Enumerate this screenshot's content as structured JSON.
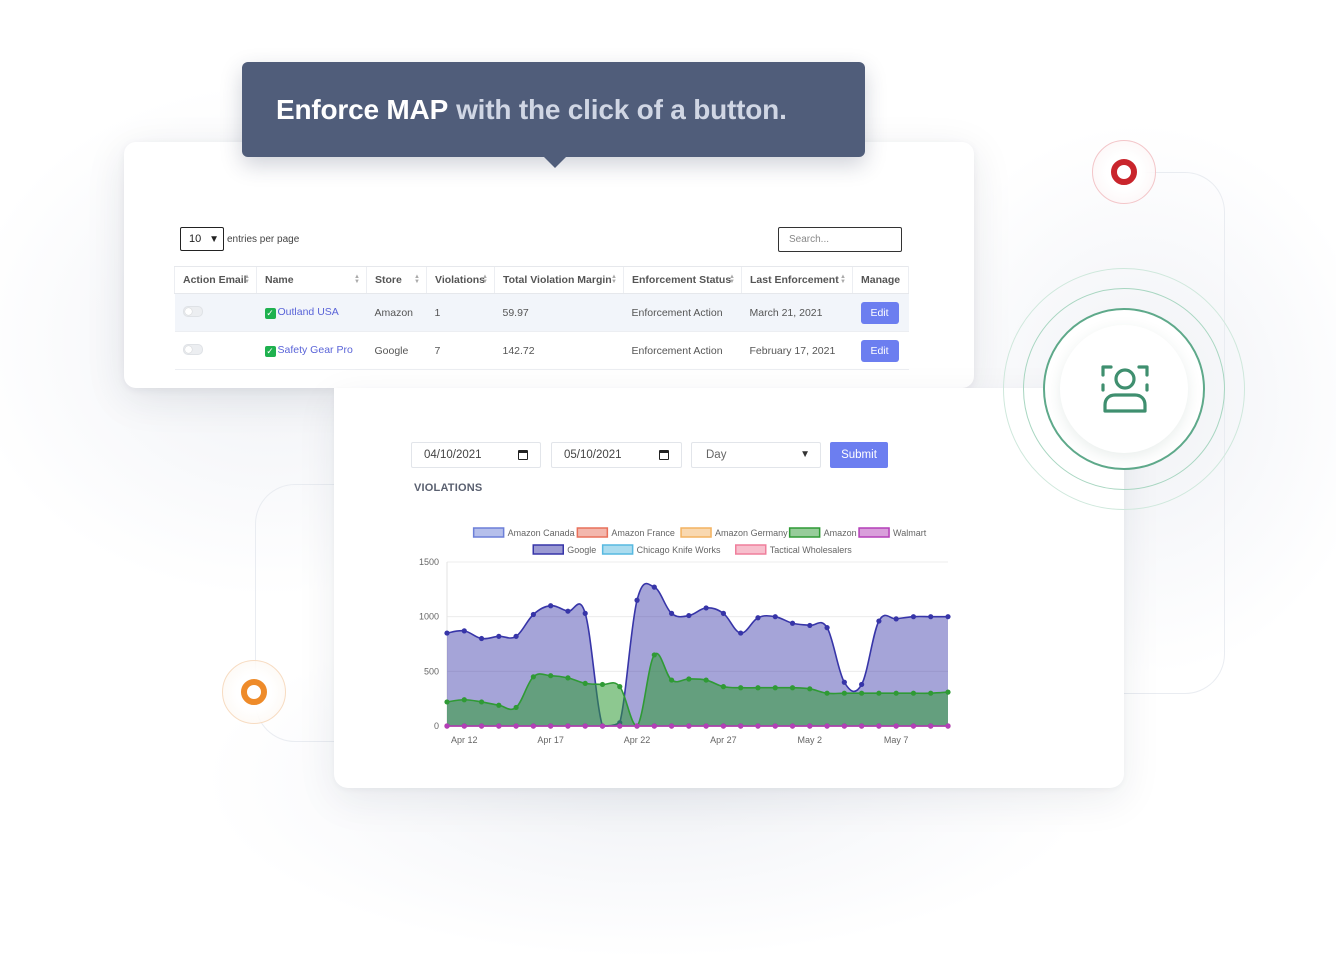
{
  "tooltip": {
    "strong": "Enforce MAP",
    "rest": "with the click of a button."
  },
  "table": {
    "entries_value": "10",
    "entries_label": "entries per page",
    "search_placeholder": "Search...",
    "columns": [
      "Action Email",
      "Name",
      "Store",
      "Violations",
      "Total Violation Margin",
      "Enforcement Status",
      "Last Enforcement",
      "Manage"
    ],
    "rows": [
      {
        "name": "Outland USA",
        "store": "Amazon",
        "violations": "1",
        "margin": "59.97",
        "status": "Enforcement Action",
        "last": "March 21, 2021",
        "manage": "Edit"
      },
      {
        "name": "Safety Gear Pro",
        "store": "Google",
        "violations": "7",
        "margin": "142.72",
        "status": "Enforcement Action",
        "last": "February 17, 2021",
        "manage": "Edit"
      }
    ]
  },
  "filters": {
    "start_date": "04/10/2021",
    "end_date": "05/10/2021",
    "period": "Day",
    "submit": "Submit"
  },
  "chart_title": "VIOLATIONS",
  "chart_data": {
    "type": "area",
    "x": [
      "Apr 11",
      "Apr 12",
      "Apr 13",
      "Apr 14",
      "Apr 15",
      "Apr 16",
      "Apr 17",
      "Apr 18",
      "Apr 19",
      "Apr 20",
      "Apr 21",
      "Apr 22",
      "Apr 23",
      "Apr 24",
      "Apr 25",
      "Apr 26",
      "Apr 27",
      "Apr 28",
      "Apr 29",
      "Apr 30",
      "May 1",
      "May 2",
      "May 3",
      "May 4",
      "May 5",
      "May 6",
      "May 7",
      "May 8",
      "May 9",
      "May 10"
    ],
    "x_tick_labels": [
      "Apr 12",
      "Apr 17",
      "Apr 22",
      "Apr 27",
      "May 2",
      "May 7"
    ],
    "ylim": [
      0,
      1500
    ],
    "y_ticks": [
      0,
      500,
      1000,
      1500
    ],
    "grid": true,
    "legend_position": "top",
    "series": [
      {
        "name": "Amazon Canada",
        "color": "#6c7fd8",
        "values": [
          0,
          0,
          0,
          0,
          0,
          0,
          0,
          0,
          0,
          0,
          0,
          0,
          0,
          0,
          0,
          0,
          0,
          0,
          0,
          0,
          0,
          0,
          0,
          0,
          0,
          0,
          0,
          0,
          0,
          0
        ]
      },
      {
        "name": "Amazon France",
        "color": "#e8705b",
        "values": [
          0,
          0,
          0,
          0,
          0,
          0,
          0,
          0,
          0,
          0,
          0,
          0,
          0,
          0,
          0,
          0,
          0,
          0,
          0,
          0,
          0,
          0,
          0,
          0,
          0,
          0,
          0,
          0,
          0,
          0
        ]
      },
      {
        "name": "Amazon Germany",
        "color": "#f3b261",
        "values": [
          0,
          0,
          0,
          0,
          0,
          0,
          0,
          0,
          0,
          0,
          0,
          0,
          0,
          0,
          0,
          0,
          0,
          0,
          0,
          0,
          0,
          0,
          0,
          0,
          0,
          0,
          0,
          0,
          0,
          0
        ]
      },
      {
        "name": "Amazon",
        "color": "#2f9a35",
        "values": [
          220,
          240,
          220,
          190,
          170,
          450,
          460,
          440,
          390,
          380,
          360,
          0,
          650,
          420,
          430,
          420,
          360,
          350,
          350,
          350,
          350,
          340,
          300,
          300,
          300,
          300,
          300,
          300,
          300,
          310
        ]
      },
      {
        "name": "Walmart",
        "color": "#b43fb8",
        "values": [
          0,
          0,
          0,
          0,
          0,
          0,
          0,
          0,
          0,
          0,
          0,
          0,
          0,
          0,
          0,
          0,
          0,
          0,
          0,
          0,
          0,
          0,
          0,
          0,
          0,
          0,
          0,
          0,
          0,
          0
        ]
      },
      {
        "name": "Google",
        "color": "#3735a8",
        "values": [
          850,
          870,
          800,
          820,
          820,
          1020,
          1100,
          1050,
          1030,
          0,
          30,
          1150,
          1270,
          1030,
          1010,
          1080,
          1030,
          850,
          990,
          1000,
          940,
          920,
          900,
          400,
          380,
          960,
          980,
          1000,
          1000,
          1000
        ]
      },
      {
        "name": "Chicago Knife Works",
        "color": "#57b9e0",
        "values": [
          0,
          0,
          0,
          0,
          0,
          0,
          0,
          0,
          0,
          0,
          0,
          0,
          0,
          0,
          0,
          0,
          0,
          0,
          0,
          0,
          0,
          0,
          0,
          0,
          0,
          0,
          0,
          0,
          0,
          0
        ]
      },
      {
        "name": "Tactical Wholesalers",
        "color": "#ef7f9c",
        "values": [
          0,
          0,
          0,
          0,
          0,
          0,
          0,
          0,
          0,
          0,
          0,
          0,
          0,
          0,
          0,
          0,
          0,
          0,
          0,
          0,
          0,
          0,
          0,
          0,
          0,
          0,
          0,
          0,
          0,
          0
        ]
      }
    ]
  }
}
